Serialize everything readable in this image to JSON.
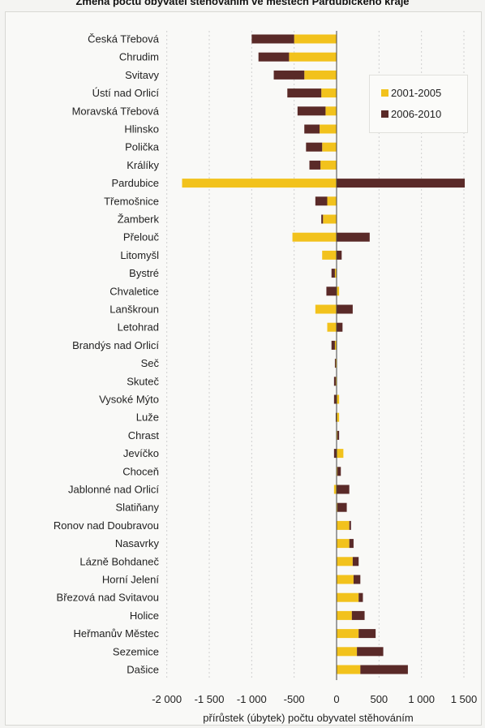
{
  "title": "Změna počtu obyvatel stěhováním ve městech Pardubického kraje",
  "chart_data": {
    "type": "bar",
    "orientation": "horizontal",
    "stacked": true,
    "title": "Změna počtu obyvatel stěhováním ve městech Pardubického kraje",
    "xlabel": "přírůstek (úbytek) počtu obyvatel stěhováním",
    "ylabel": "",
    "xlim": [
      -2000,
      1500
    ],
    "xticks": [
      -2000,
      -1500,
      -1000,
      -500,
      0,
      500,
      1000,
      1500
    ],
    "xtick_labels": [
      "-2 000",
      "-1 500",
      "-1 000",
      "-500",
      "0",
      "500",
      "1 000",
      "1 500"
    ],
    "grid": "vertical dashed",
    "legend_position": "top-right",
    "categories": [
      "Česká Třebová",
      "Chrudim",
      "Svitavy",
      "Ústí nad Orlicí",
      "Moravská Třebová",
      "Hlinsko",
      "Polička",
      "Králíky",
      "Pardubice",
      "Třemošnice",
      "Žamberk",
      "Přelouč",
      "Litomyšl",
      "Bystré",
      "Chvaletice",
      "Lanškroun",
      "Letohrad",
      "Brandýs nad Orlicí",
      "Seč",
      "Skuteč",
      "Vysoké Mýto",
      "Luže",
      "Chrast",
      "Jevíčko",
      "Choceň",
      "Jablonné nad Orlicí",
      "Slatiňany",
      "Ronov nad Doubravou",
      "Nasavrky",
      "Lázně Bohdaneč",
      "Horní Jelení",
      "Březová nad Svitavou",
      "Holice",
      "Heřmanův Městec",
      "Sezemice",
      "Dašice"
    ],
    "series": [
      {
        "name": "2001-2005",
        "color": "#f2c21c",
        "values": [
          -500,
          -560,
          -380,
          -180,
          -130,
          -200,
          -170,
          -190,
          -1820,
          -110,
          -160,
          -520,
          -170,
          -20,
          30,
          -250,
          -110,
          -20,
          -10,
          -10,
          30,
          30,
          10,
          80,
          10,
          -30,
          10,
          150,
          150,
          190,
          200,
          260,
          180,
          260,
          240,
          280
        ]
      },
      {
        "name": "2006-2010",
        "color": "#5a2a28",
        "values": [
          -500,
          -360,
          -360,
          -400,
          -330,
          -180,
          -190,
          -130,
          1510,
          -140,
          -20,
          390,
          60,
          -40,
          -120,
          190,
          70,
          -40,
          -10,
          -20,
          -30,
          -10,
          20,
          -30,
          40,
          150,
          110,
          20,
          50,
          70,
          80,
          50,
          150,
          200,
          310,
          560
        ]
      }
    ]
  },
  "legend": {
    "item1_label": "2001-2005",
    "item1_color": "#f2c21c",
    "item2_label": "2006-2010",
    "item2_color": "#5a2a28"
  }
}
